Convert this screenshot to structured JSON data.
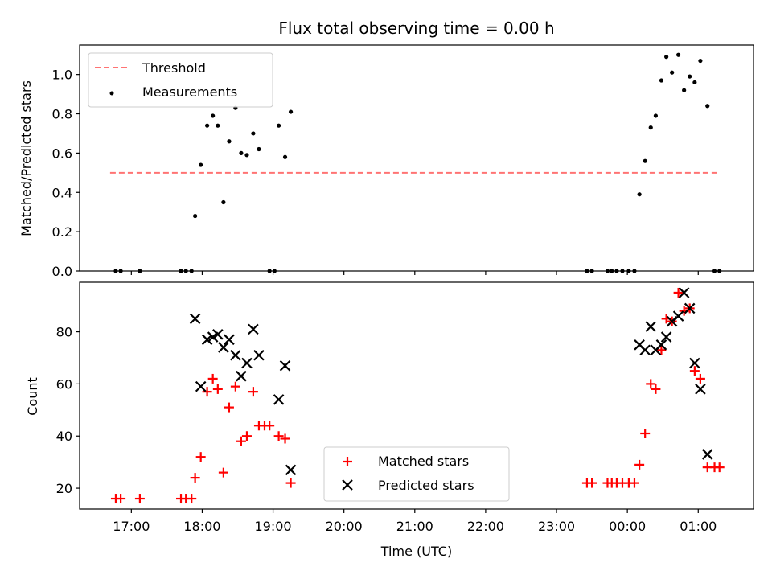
{
  "chart_data": [
    {
      "type": "scatter",
      "title": "Flux total observing time = 0.00 h",
      "xlabel": "",
      "ylabel": "Matched/Predicted stars",
      "xlim": [
        -0.73,
        8.78
      ],
      "ylim": [
        0.0,
        1.15
      ],
      "yticks": [
        0.0,
        0.2,
        0.4,
        0.6,
        0.8,
        1.0
      ],
      "ytick_labels": [
        "0.0",
        "0.2",
        "0.4",
        "0.6",
        "0.8",
        "1.0"
      ],
      "legend_placement": "upper-left",
      "threshold": {
        "name": "Threshold",
        "y": 0.5,
        "x": [
          -0.3,
          8.3
        ],
        "color": "#ff7373"
      },
      "series": [
        {
          "name": "Measurements",
          "color": "#000000",
          "marker": "dot",
          "points": [
            [
              -0.22,
              0.0
            ],
            [
              -0.15,
              0.0
            ],
            [
              0.12,
              0.0
            ],
            [
              0.7,
              0.0
            ],
            [
              0.77,
              0.0
            ],
            [
              0.85,
              0.0
            ],
            [
              0.9,
              0.28
            ],
            [
              0.98,
              0.54
            ],
            [
              1.07,
              0.74
            ],
            [
              1.15,
              0.79
            ],
            [
              1.22,
              0.74
            ],
            [
              1.3,
              0.35
            ],
            [
              1.38,
              0.66
            ],
            [
              1.47,
              0.83
            ],
            [
              1.55,
              0.6
            ],
            [
              1.63,
              0.59
            ],
            [
              1.72,
              0.7
            ],
            [
              1.8,
              0.62
            ],
            [
              1.95,
              0.0
            ],
            [
              2.02,
              0.0
            ],
            [
              2.08,
              0.74
            ],
            [
              2.17,
              0.58
            ],
            [
              2.25,
              0.81
            ],
            [
              6.43,
              0.0
            ],
            [
              6.5,
              0.0
            ],
            [
              6.72,
              0.0
            ],
            [
              6.78,
              0.0
            ],
            [
              6.85,
              0.0
            ],
            [
              6.93,
              0.0
            ],
            [
              7.02,
              0.0
            ],
            [
              7.1,
              0.0
            ],
            [
              7.17,
              0.39
            ],
            [
              7.25,
              0.56
            ],
            [
              7.33,
              0.73
            ],
            [
              7.4,
              0.79
            ],
            [
              7.48,
              0.97
            ],
            [
              7.55,
              1.09
            ],
            [
              7.63,
              1.01
            ],
            [
              7.72,
              1.1
            ],
            [
              7.8,
              0.92
            ],
            [
              7.88,
              0.99
            ],
            [
              7.95,
              0.96
            ],
            [
              8.03,
              1.07
            ],
            [
              8.13,
              0.84
            ],
            [
              8.23,
              0.0
            ],
            [
              8.3,
              0.0
            ]
          ]
        }
      ]
    },
    {
      "type": "scatter",
      "title": "",
      "xlabel": "Time (UTC)",
      "ylabel": "Count",
      "xlim": [
        -0.73,
        8.78
      ],
      "ylim": [
        12.0,
        99.0
      ],
      "yticks": [
        20,
        40,
        60,
        80
      ],
      "ytick_labels": [
        "20",
        "40",
        "60",
        "80"
      ],
      "xticks": [
        0,
        1,
        2,
        3,
        4,
        5,
        6,
        7,
        8
      ],
      "xtick_labels": [
        "17:00",
        "18:00",
        "19:00",
        "20:00",
        "21:00",
        "22:00",
        "23:00",
        "00:00",
        "01:00"
      ],
      "legend_placement": "lower-center",
      "series": [
        {
          "name": "Matched stars",
          "color": "#ff0000",
          "marker": "plus",
          "points": [
            [
              -0.22,
              16
            ],
            [
              -0.15,
              16
            ],
            [
              0.12,
              16
            ],
            [
              0.7,
              16
            ],
            [
              0.77,
              16
            ],
            [
              0.85,
              16
            ],
            [
              0.9,
              24
            ],
            [
              0.98,
              32
            ],
            [
              1.07,
              57
            ],
            [
              1.15,
              62
            ],
            [
              1.22,
              58
            ],
            [
              1.3,
              26
            ],
            [
              1.38,
              51
            ],
            [
              1.47,
              59
            ],
            [
              1.55,
              38
            ],
            [
              1.63,
              40
            ],
            [
              1.72,
              57
            ],
            [
              1.8,
              44
            ],
            [
              1.88,
              44
            ],
            [
              1.95,
              44
            ],
            [
              2.08,
              40
            ],
            [
              2.17,
              39
            ],
            [
              2.25,
              22
            ],
            [
              6.43,
              22
            ],
            [
              6.5,
              22
            ],
            [
              6.72,
              22
            ],
            [
              6.78,
              22
            ],
            [
              6.85,
              22
            ],
            [
              6.93,
              22
            ],
            [
              7.02,
              22
            ],
            [
              7.1,
              22
            ],
            [
              7.17,
              29
            ],
            [
              7.25,
              41
            ],
            [
              7.33,
              60
            ],
            [
              7.4,
              58
            ],
            [
              7.48,
              73
            ],
            [
              7.55,
              85
            ],
            [
              7.63,
              84
            ],
            [
              7.72,
              95
            ],
            [
              7.8,
              88
            ],
            [
              7.88,
              89
            ],
            [
              7.95,
              65
            ],
            [
              8.03,
              62
            ],
            [
              8.13,
              28
            ],
            [
              8.23,
              28
            ],
            [
              8.3,
              28
            ]
          ]
        },
        {
          "name": "Predicted stars",
          "color": "#000000",
          "marker": "x",
          "points": [
            [
              0.9,
              85
            ],
            [
              0.98,
              59
            ],
            [
              1.07,
              77
            ],
            [
              1.15,
              78
            ],
            [
              1.22,
              79
            ],
            [
              1.3,
              74
            ],
            [
              1.38,
              77
            ],
            [
              1.47,
              71
            ],
            [
              1.55,
              63
            ],
            [
              1.63,
              68
            ],
            [
              1.72,
              81
            ],
            [
              1.8,
              71
            ],
            [
              2.08,
              54
            ],
            [
              2.17,
              67
            ],
            [
              2.25,
              27
            ],
            [
              7.17,
              75
            ],
            [
              7.25,
              73
            ],
            [
              7.33,
              82
            ],
            [
              7.4,
              73
            ],
            [
              7.48,
              75
            ],
            [
              7.55,
              78
            ],
            [
              7.63,
              84
            ],
            [
              7.72,
              86
            ],
            [
              7.8,
              95
            ],
            [
              7.88,
              89
            ],
            [
              7.95,
              68
            ],
            [
              8.03,
              58
            ],
            [
              8.13,
              33
            ]
          ]
        }
      ]
    }
  ]
}
